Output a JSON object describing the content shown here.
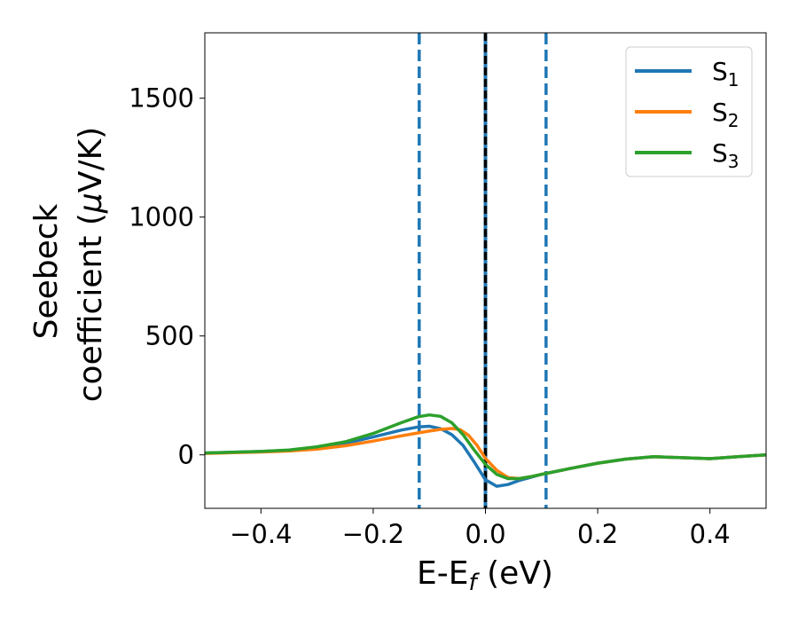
{
  "chart_data": {
    "type": "line",
    "title": "",
    "xlabel": {
      "base": "E-E",
      "sub": "f",
      "tail": " (eV)"
    },
    "ylabel": {
      "line1": "Seebeck",
      "line2_text": "coefficient  (",
      "line2_mu": "μ",
      "line2_tail": "V/K)"
    },
    "xlim": [
      -0.5,
      0.5
    ],
    "ylim": [
      -225,
      1775
    ],
    "xticks": [
      {
        "value": -0.4,
        "label": "−0.4"
      },
      {
        "value": -0.2,
        "label": "−0.2"
      },
      {
        "value": 0.0,
        "label": "0.0"
      },
      {
        "value": 0.2,
        "label": "0.2"
      },
      {
        "value": 0.4,
        "label": "0.4"
      }
    ],
    "yticks": [
      {
        "value": 0,
        "label": "0"
      },
      {
        "value": 500,
        "label": "500"
      },
      {
        "value": 1000,
        "label": "1000"
      },
      {
        "value": 1500,
        "label": "1500"
      }
    ],
    "grid": false,
    "legend": {
      "placement": "top-right"
    },
    "vlines": [
      {
        "x": -0.118,
        "style": "dashed",
        "color": "#1f77b4"
      },
      {
        "x": 0.108,
        "style": "dashed",
        "color": "#1f77b4"
      },
      {
        "x": 0.0,
        "style": "solid",
        "color": "#1f77b4"
      },
      {
        "x": 0.0,
        "style": "dashed",
        "color": "#000000"
      }
    ],
    "series": [
      {
        "name": "S",
        "sub": "1",
        "color": "#1f77b4",
        "points": [
          [
            -0.5,
            8
          ],
          [
            -0.45,
            11
          ],
          [
            -0.4,
            14
          ],
          [
            -0.35,
            19
          ],
          [
            -0.3,
            30
          ],
          [
            -0.25,
            48
          ],
          [
            -0.2,
            75
          ],
          [
            -0.15,
            104
          ],
          [
            -0.12,
            117
          ],
          [
            -0.1,
            120
          ],
          [
            -0.08,
            110
          ],
          [
            -0.06,
            85
          ],
          [
            -0.04,
            40
          ],
          [
            -0.02,
            -30
          ],
          [
            0.0,
            -105
          ],
          [
            0.02,
            -132
          ],
          [
            0.04,
            -125
          ],
          [
            0.06,
            -108
          ],
          [
            0.08,
            -95
          ],
          [
            0.1,
            -82
          ],
          [
            0.15,
            -58
          ],
          [
            0.2,
            -35
          ],
          [
            0.25,
            -18
          ],
          [
            0.3,
            -8
          ],
          [
            0.35,
            -12
          ],
          [
            0.4,
            -16
          ],
          [
            0.45,
            -8
          ],
          [
            0.5,
            0
          ]
        ]
      },
      {
        "name": "S",
        "sub": "2",
        "color": "#ff7f0e",
        "points": [
          [
            -0.5,
            6
          ],
          [
            -0.45,
            9
          ],
          [
            -0.4,
            12
          ],
          [
            -0.35,
            16
          ],
          [
            -0.3,
            24
          ],
          [
            -0.25,
            38
          ],
          [
            -0.2,
            58
          ],
          [
            -0.15,
            80
          ],
          [
            -0.12,
            92
          ],
          [
            -0.1,
            100
          ],
          [
            -0.08,
            107
          ],
          [
            -0.06,
            111
          ],
          [
            -0.045,
            106
          ],
          [
            -0.03,
            82
          ],
          [
            -0.015,
            40
          ],
          [
            0.0,
            -15
          ],
          [
            0.02,
            -65
          ],
          [
            0.04,
            -95
          ],
          [
            0.06,
            -100
          ],
          [
            0.08,
            -92
          ],
          [
            0.1,
            -82
          ],
          [
            0.15,
            -58
          ],
          [
            0.2,
            -35
          ],
          [
            0.25,
            -18
          ],
          [
            0.3,
            -8
          ],
          [
            0.35,
            -12
          ],
          [
            0.4,
            -16
          ],
          [
            0.45,
            -8
          ],
          [
            0.5,
            0
          ]
        ]
      },
      {
        "name": "S",
        "sub": "3",
        "color": "#2ca02c",
        "points": [
          [
            -0.5,
            8
          ],
          [
            -0.45,
            11
          ],
          [
            -0.4,
            14
          ],
          [
            -0.35,
            20
          ],
          [
            -0.3,
            34
          ],
          [
            -0.25,
            55
          ],
          [
            -0.2,
            90
          ],
          [
            -0.15,
            135
          ],
          [
            -0.12,
            160
          ],
          [
            -0.1,
            168
          ],
          [
            -0.08,
            162
          ],
          [
            -0.06,
            135
          ],
          [
            -0.04,
            85
          ],
          [
            -0.02,
            20
          ],
          [
            0.0,
            -40
          ],
          [
            0.02,
            -82
          ],
          [
            0.04,
            -100
          ],
          [
            0.06,
            -100
          ],
          [
            0.08,
            -92
          ],
          [
            0.1,
            -82
          ],
          [
            0.15,
            -58
          ],
          [
            0.2,
            -35
          ],
          [
            0.25,
            -18
          ],
          [
            0.3,
            -8
          ],
          [
            0.35,
            -12
          ],
          [
            0.4,
            -16
          ],
          [
            0.45,
            -8
          ],
          [
            0.5,
            0
          ]
        ]
      }
    ]
  }
}
